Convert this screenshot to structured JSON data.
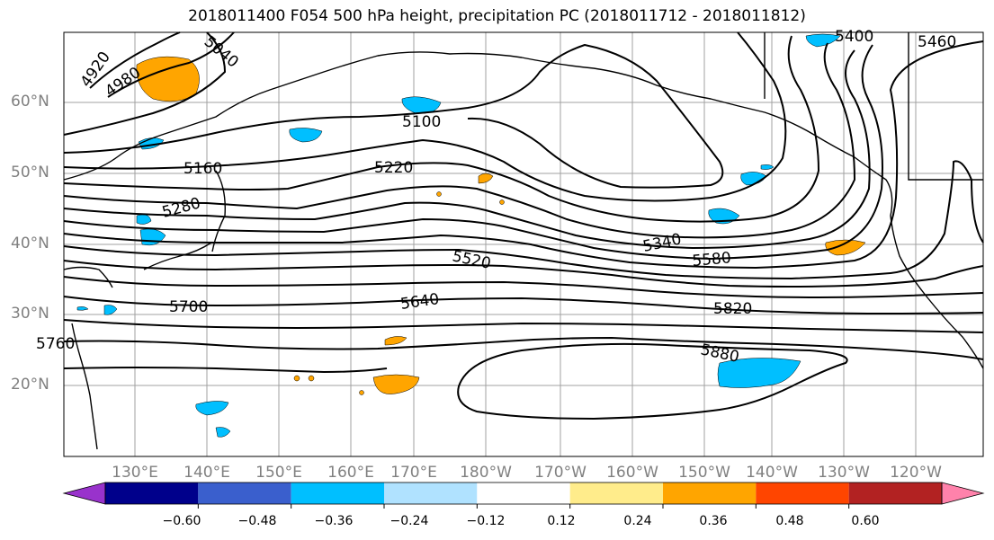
{
  "title": "2018011400 F054 500 hPa height, precipitation PC (2018011712 - 2018011812)",
  "lat_labels": [
    "60°N",
    "50°N",
    "40°N",
    "30°N",
    "20°N"
  ],
  "lon_labels": [
    "130°E",
    "140°E",
    "150°E",
    "160°E",
    "170°E",
    "180°W",
    "170°W",
    "160°W",
    "150°W",
    "140°W",
    "130°W",
    "120°W"
  ],
  "contour_labels": [
    "4920",
    "4980",
    "5040",
    "5100",
    "5160",
    "5220",
    "5280",
    "5340",
    "5400",
    "5460",
    "5520",
    "5580",
    "5640",
    "5700",
    "5760",
    "5820",
    "5880"
  ],
  "colorbar": {
    "ticks": [
      "−0.60",
      "−0.48",
      "−0.36",
      "−0.24",
      "−0.12",
      "0.12",
      "0.24",
      "0.36",
      "0.48",
      "0.60"
    ],
    "colors": [
      "#9932cc",
      "#00008b",
      "#3a5fcd",
      "#00bfff",
      "#b0e2ff",
      "#ffffff",
      "#ffec8b",
      "#ffa500",
      "#ff4500",
      "#b22222",
      "#ff82ab"
    ]
  },
  "colors": {
    "contour": "#000000",
    "grid": "#a0a0a0",
    "positive_anomaly": "#ffa500",
    "negative_anomaly": "#00bfff"
  }
}
